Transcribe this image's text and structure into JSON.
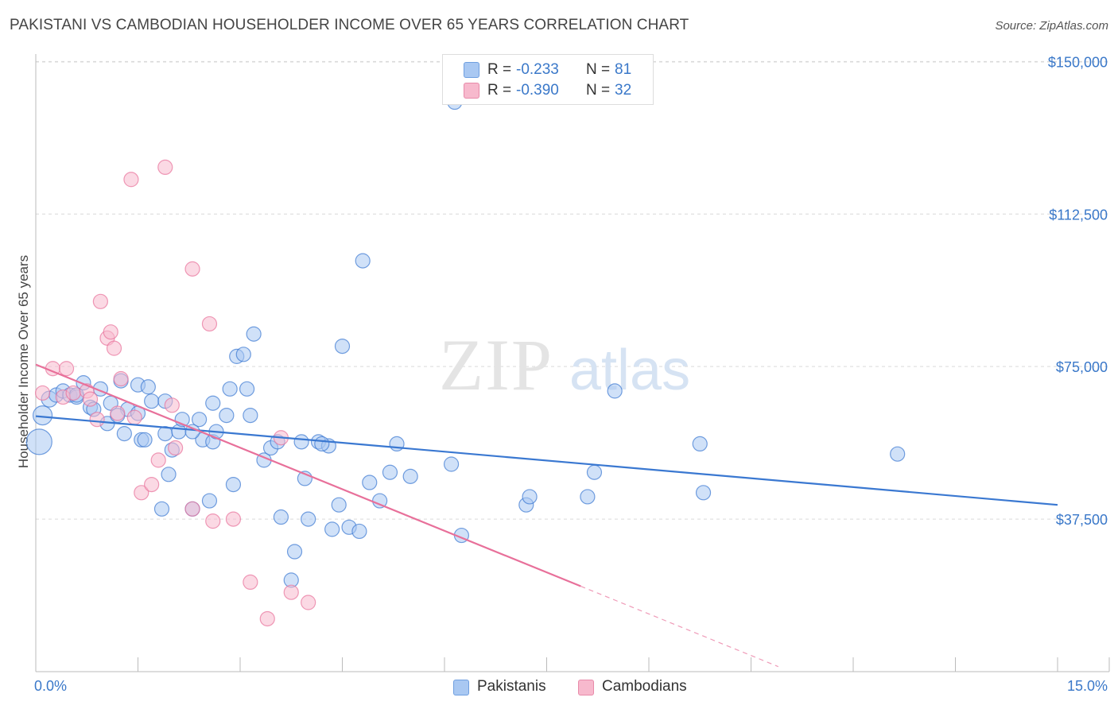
{
  "title": "PAKISTANI VS CAMBODIAN HOUSEHOLDER INCOME OVER 65 YEARS CORRELATION CHART",
  "source": "Source: ZipAtlas.com",
  "watermark": {
    "zip": "ZIP",
    "atlas": "atlas"
  },
  "legend": {
    "r_label": "R =",
    "n_label": "N =",
    "rows": [
      {
        "r": "-0.233",
        "n": "81",
        "color": "#a9c8f2",
        "border": "#6f9fe0"
      },
      {
        "r": "-0.390",
        "n": "32",
        "color": "#f7b9cd",
        "border": "#e88aa9"
      }
    ]
  },
  "bottom_legend": [
    {
      "label": "Pakistanis",
      "color": "#a9c8f2"
    },
    {
      "label": "Cambodians",
      "color": "#f7b9cd"
    }
  ],
  "chart_data": {
    "type": "scatter",
    "title": "PAKISTANI VS CAMBODIAN HOUSEHOLDER INCOME OVER 65 YEARS CORRELATION CHART",
    "xlabel": "",
    "ylabel": "Householder Income Over 65 years",
    "xlim": [
      0,
      15
    ],
    "ylim": [
      0,
      153000
    ],
    "x_tick_labels": [
      "0.0%",
      "15.0%"
    ],
    "y_ticks": [
      37500,
      75000,
      112500,
      150000
    ],
    "y_tick_labels": [
      "$37,500",
      "$75,000",
      "$112,500",
      "$150,000"
    ],
    "grid": true,
    "series": [
      {
        "name": "Pakistanis",
        "color": "#3a78d1",
        "fill": "#a9c8f2",
        "trend": {
          "x0": 0,
          "y0": 62800,
          "x1": 15,
          "y1": 41000
        },
        "points": [
          [
            0.05,
            56500,
            16
          ],
          [
            0.1,
            63000,
            12
          ],
          [
            0.2,
            67000,
            10
          ],
          [
            0.3,
            68000,
            9
          ],
          [
            0.4,
            69000,
            9
          ],
          [
            0.5,
            68000,
            9
          ],
          [
            0.6,
            67500,
            9
          ],
          [
            0.7,
            71000,
            9
          ],
          [
            0.8,
            65000,
            9
          ],
          [
            0.85,
            64500,
            9
          ],
          [
            0.95,
            69500,
            9
          ],
          [
            1.05,
            61000,
            9
          ],
          [
            1.1,
            66000,
            9
          ],
          [
            1.25,
            71500,
            9
          ],
          [
            1.3,
            58500,
            9
          ],
          [
            1.35,
            64500,
            9
          ],
          [
            1.5,
            63500,
            9
          ],
          [
            1.5,
            70500,
            9
          ],
          [
            1.55,
            57000,
            9
          ],
          [
            1.6,
            57000,
            9
          ],
          [
            1.65,
            70000,
            9
          ],
          [
            1.7,
            66500,
            9
          ],
          [
            1.85,
            40000,
            9
          ],
          [
            1.9,
            66500,
            9
          ],
          [
            1.9,
            58500,
            9
          ],
          [
            1.95,
            48500,
            9
          ],
          [
            2.0,
            54500,
            9
          ],
          [
            2.1,
            59000,
            9
          ],
          [
            2.15,
            62000,
            9
          ],
          [
            2.3,
            40000,
            9
          ],
          [
            2.4,
            62000,
            9
          ],
          [
            2.45,
            57000,
            9
          ],
          [
            2.55,
            42000,
            9
          ],
          [
            2.6,
            66000,
            9
          ],
          [
            2.6,
            56500,
            9
          ],
          [
            2.65,
            59000,
            9
          ],
          [
            2.8,
            63000,
            9
          ],
          [
            2.85,
            69500,
            9
          ],
          [
            2.9,
            46000,
            9
          ],
          [
            2.95,
            77500,
            9
          ],
          [
            3.05,
            78000,
            9
          ],
          [
            3.1,
            69500,
            9
          ],
          [
            3.15,
            63000,
            9
          ],
          [
            3.2,
            83000,
            9
          ],
          [
            3.35,
            52000,
            9
          ],
          [
            3.45,
            55000,
            9
          ],
          [
            3.55,
            56500,
            9
          ],
          [
            3.6,
            38000,
            9
          ],
          [
            3.8,
            29500,
            9
          ],
          [
            3.75,
            22500,
            9
          ],
          [
            3.9,
            56500,
            9
          ],
          [
            3.95,
            47500,
            9
          ],
          [
            4.0,
            37500,
            9
          ],
          [
            4.15,
            56500,
            9
          ],
          [
            4.3,
            55500,
            9
          ],
          [
            4.35,
            35000,
            9
          ],
          [
            4.45,
            41000,
            9
          ],
          [
            4.5,
            80000,
            9
          ],
          [
            4.6,
            35500,
            9
          ],
          [
            4.75,
            34500,
            9
          ],
          [
            4.8,
            101000,
            9
          ],
          [
            4.9,
            46500,
            9
          ],
          [
            5.05,
            42000,
            9
          ],
          [
            5.2,
            49000,
            9
          ],
          [
            5.3,
            56000,
            9
          ],
          [
            6.15,
            140000,
            9
          ],
          [
            6.1,
            51000,
            9
          ],
          [
            6.25,
            33500,
            9
          ],
          [
            7.2,
            41000,
            9
          ],
          [
            7.25,
            43000,
            9
          ],
          [
            8.1,
            43000,
            9
          ],
          [
            8.2,
            49000,
            9
          ],
          [
            8.5,
            69000,
            9
          ],
          [
            9.75,
            56000,
            9
          ],
          [
            9.8,
            44000,
            9
          ],
          [
            12.65,
            53500,
            9
          ],
          [
            0.6,
            68000,
            9
          ],
          [
            1.2,
            63000,
            9
          ],
          [
            2.3,
            59000,
            9
          ],
          [
            4.2,
            56000,
            9
          ],
          [
            5.5,
            48000,
            9
          ]
        ]
      },
      {
        "name": "Cambodians",
        "color": "#e8709a",
        "fill": "#f7b9cd",
        "trend": {
          "x0": 0,
          "y0": 75500,
          "x1": 8.0,
          "y1": 21000,
          "dash_x1": 10.9
        },
        "points": [
          [
            0.1,
            68500,
            9
          ],
          [
            0.25,
            74500,
            9
          ],
          [
            0.4,
            67500,
            9
          ],
          [
            0.45,
            74500,
            9
          ],
          [
            0.55,
            68500,
            9
          ],
          [
            0.75,
            69000,
            9
          ],
          [
            0.8,
            67000,
            9
          ],
          [
            0.9,
            62000,
            9
          ],
          [
            0.95,
            91000,
            9
          ],
          [
            1.05,
            82000,
            9
          ],
          [
            1.1,
            83500,
            9
          ],
          [
            1.15,
            79500,
            9
          ],
          [
            1.2,
            63500,
            9
          ],
          [
            1.25,
            72000,
            9
          ],
          [
            1.4,
            121000,
            9
          ],
          [
            1.45,
            62500,
            9
          ],
          [
            1.55,
            44000,
            9
          ],
          [
            1.7,
            46000,
            9
          ],
          [
            1.8,
            52000,
            9
          ],
          [
            1.9,
            124000,
            9
          ],
          [
            2.0,
            65500,
            9
          ],
          [
            2.05,
            55000,
            9
          ],
          [
            2.3,
            40000,
            9
          ],
          [
            2.3,
            99000,
            9
          ],
          [
            2.55,
            85500,
            9
          ],
          [
            2.6,
            37000,
            9
          ],
          [
            2.9,
            37500,
            9
          ],
          [
            3.15,
            22000,
            9
          ],
          [
            3.4,
            13000,
            9
          ],
          [
            3.6,
            57500,
            9
          ],
          [
            3.75,
            19500,
            9
          ],
          [
            4.0,
            17000,
            9
          ]
        ]
      }
    ]
  }
}
